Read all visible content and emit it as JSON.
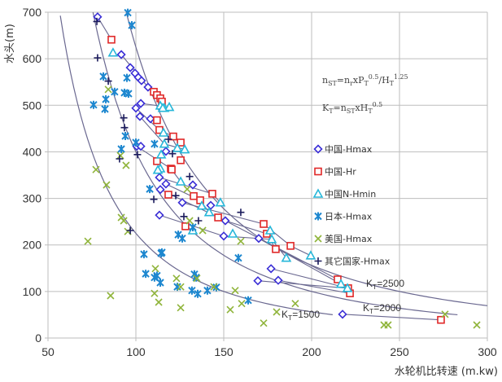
{
  "chart_data": {
    "type": "scatter",
    "title": "",
    "xlabel": "水轮机比转速 (m.kw)",
    "ylabel": "水头(m)",
    "xlim": [
      50,
      300
    ],
    "ylim": [
      0,
      700
    ],
    "x_ticks": [
      "50",
      "100",
      "150",
      "200",
      "250",
      "300"
    ],
    "y_ticks": [
      "0",
      "100",
      "200",
      "300",
      "400",
      "500",
      "600",
      "700"
    ],
    "grid": true,
    "legend_position": "right",
    "formulas": [
      "n_{ST}=n_{r}xP_{T}^{0.5}/H_{T}^{1.25}",
      "K_{T}=n_{ST}xH_{T}^{0.5}"
    ],
    "colors": {
      "cn_hmax": "#3b2fd6",
      "cn_hr": "#e02828",
      "cn_hmin": "#27b7d9",
      "jp": "#1d87cf",
      "us": "#8fb43a",
      "other": "#1b1b5c",
      "curve": "#6a6890"
    },
    "series": [
      {
        "name": "中国-Hmax",
        "marker": "diamond",
        "points": [
          [
            78.2,
            690
          ],
          [
            91.7,
            609
          ],
          [
            96.8,
            581
          ],
          [
            99.5,
            569
          ],
          [
            101.4,
            560
          ],
          [
            103.2,
            553
          ],
          [
            106.9,
            539
          ],
          [
            102.8,
            504
          ],
          [
            100,
            494
          ],
          [
            102.3,
            476
          ],
          [
            108.3,
            471
          ],
          [
            100.5,
            412
          ],
          [
            102.8,
            412
          ],
          [
            117.1,
            401
          ],
          [
            113.4,
            345
          ],
          [
            117.1,
            331
          ],
          [
            132.4,
            329
          ],
          [
            113.9,
            319
          ],
          [
            126.4,
            291
          ],
          [
            142.6,
            285
          ],
          [
            113.4,
            264
          ],
          [
            150.9,
            252
          ],
          [
            150,
            219
          ],
          [
            169.9,
            214
          ],
          [
            176.9,
            149
          ],
          [
            169.4,
            123
          ],
          [
            181,
            124
          ],
          [
            217.6,
            51
          ]
        ]
      },
      {
        "name": "中国-Hr",
        "marker": "square",
        "points": [
          [
            86.1,
            641
          ],
          [
            110.2,
            529
          ],
          [
            112,
            522
          ],
          [
            113.9,
            515
          ],
          [
            114.8,
            508
          ],
          [
            112,
            468
          ],
          [
            113.4,
            447
          ],
          [
            121.3,
            433
          ],
          [
            125.5,
            420
          ],
          [
            112,
            380
          ],
          [
            119.9,
            364
          ],
          [
            125.5,
            382
          ],
          [
            120.4,
            362
          ],
          [
            118.5,
            308
          ],
          [
            132.9,
            305
          ],
          [
            136.6,
            296
          ],
          [
            143.5,
            310
          ],
          [
            146.8,
            259
          ],
          [
            128.2,
            240
          ],
          [
            172.7,
            245
          ],
          [
            174.5,
            224
          ],
          [
            179.6,
            191
          ],
          [
            188,
            198
          ],
          [
            214.8,
            126
          ],
          [
            220.8,
            107
          ],
          [
            221.8,
            96
          ],
          [
            273.6,
            39
          ]
        ]
      },
      {
        "name": "中国N-Hmin",
        "marker": "triangle",
        "points": [
          [
            87,
            613
          ],
          [
            113.9,
            499
          ],
          [
            116.2,
            494
          ],
          [
            119,
            496
          ],
          [
            115.3,
            494
          ],
          [
            116.2,
            417
          ],
          [
            123.6,
            408
          ],
          [
            127.8,
            405
          ],
          [
            114.4,
            394
          ],
          [
            113.9,
            364
          ],
          [
            115.7,
            441
          ],
          [
            112.5,
            361
          ],
          [
            125.5,
            336
          ],
          [
            137.5,
            284
          ],
          [
            141.7,
            270
          ],
          [
            148.1,
            291
          ],
          [
            132.4,
            231
          ],
          [
            155.1,
            224
          ],
          [
            176.4,
            231
          ],
          [
            177.3,
            212
          ],
          [
            185.6,
            172
          ],
          [
            199.5,
            177
          ],
          [
            216.7,
            116
          ],
          [
            220.4,
            107
          ]
        ]
      },
      {
        "name": "日本-Hmax",
        "marker": "star",
        "points": [
          [
            95.4,
            699
          ],
          [
            97.7,
            672
          ],
          [
            81.5,
            562
          ],
          [
            94.9,
            559
          ],
          [
            87.9,
            529
          ],
          [
            93.5,
            527
          ],
          [
            95.8,
            525
          ],
          [
            82.9,
            513
          ],
          [
            75.9,
            501
          ],
          [
            82.4,
            492
          ],
          [
            94,
            434
          ],
          [
            100,
            420
          ],
          [
            91.7,
            406
          ],
          [
            110.6,
            417
          ],
          [
            107.9,
            320
          ],
          [
            124.1,
            222
          ],
          [
            126.4,
            214
          ],
          [
            104.6,
            180
          ],
          [
            114.4,
            182
          ],
          [
            105.6,
            138
          ],
          [
            110.6,
            130
          ],
          [
            112,
            134
          ],
          [
            113.9,
            119
          ],
          [
            123.6,
            110
          ],
          [
            131.9,
            102
          ],
          [
            132.4,
            238
          ],
          [
            114.8,
            184
          ],
          [
            158.3,
            172
          ],
          [
            133.3,
            137
          ],
          [
            134.3,
            130
          ],
          [
            135.2,
            95
          ],
          [
            140.7,
            102
          ],
          [
            145.8,
            109
          ],
          [
            163.9,
            81
          ]
        ]
      },
      {
        "name": "美国-Hmax",
        "marker": "x",
        "points": [
          [
            84.3,
            534
          ],
          [
            77.3,
            362
          ],
          [
            83.3,
            329
          ],
          [
            91.2,
            392
          ],
          [
            94.4,
            371
          ],
          [
            91.7,
            259
          ],
          [
            93.1,
            252
          ],
          [
            95.4,
            229
          ],
          [
            72.7,
            208
          ],
          [
            85.6,
            91
          ],
          [
            111.1,
            149
          ],
          [
            123.1,
            128
          ],
          [
            125.5,
            110
          ],
          [
            110.6,
            96
          ],
          [
            113,
            77
          ],
          [
            125.5,
            65
          ],
          [
            134.7,
            128
          ],
          [
            144.4,
            110
          ],
          [
            156.5,
            102
          ],
          [
            153.7,
            61
          ],
          [
            160.2,
            74
          ],
          [
            190.7,
            74
          ],
          [
            172.7,
            32
          ],
          [
            180.1,
            56
          ],
          [
            129.2,
            320
          ],
          [
            130.6,
            252
          ],
          [
            138,
            231
          ],
          [
            159.7,
            208
          ],
          [
            241.2,
            28
          ],
          [
            243.5,
            28
          ],
          [
            275.9,
            51
          ],
          [
            294,
            28
          ]
        ]
      },
      {
        "name": "其它国家-Hmax",
        "marker": "plus",
        "points": [
          [
            77.8,
            680
          ],
          [
            78.2,
            602
          ],
          [
            84.3,
            552
          ],
          [
            93.1,
            473
          ],
          [
            93.5,
            452
          ],
          [
            90.7,
            385
          ],
          [
            100.9,
            394
          ],
          [
            118.5,
            427
          ],
          [
            120.8,
            396
          ],
          [
            130.6,
            347
          ],
          [
            122.7,
            306
          ],
          [
            110.2,
            298
          ],
          [
            127.3,
            261
          ],
          [
            96.8,
            231
          ],
          [
            135.6,
            252
          ],
          [
            159.7,
            270
          ]
        ]
      }
    ],
    "curves": [
      {
        "label": "K_{T}=1500",
        "K": 1500,
        "x_range": [
          57,
          212
        ]
      },
      {
        "label": "K_{T}=2000",
        "K": 2000,
        "x_range": [
          75.6,
          283
        ]
      },
      {
        "label": "K_{T}=2500",
        "K": 2500,
        "x_range": [
          94.5,
          300
        ]
      }
    ],
    "links": [
      [
        [
          78.2,
          690
        ],
        [
          86.1,
          641
        ]
      ],
      [
        [
          91.7,
          609
        ],
        [
          106.9,
          539
        ],
        [
          114.4,
          508
        ]
      ],
      [
        [
          102.8,
          504
        ],
        [
          119,
          496
        ]
      ],
      [
        [
          100,
          494
        ],
        [
          113.4,
          447
        ],
        [
          121.3,
          433
        ],
        [
          125.5,
          420
        ]
      ],
      [
        [
          102.3,
          476
        ],
        [
          116.2,
          417
        ],
        [
          127.8,
          405
        ]
      ],
      [
        [
          100.5,
          412
        ],
        [
          119.9,
          364
        ],
        [
          125.5,
          336
        ]
      ],
      [
        [
          113.4,
          345
        ],
        [
          143.5,
          310
        ],
        [
          148.1,
          291
        ]
      ],
      [
        [
          117.1,
          331
        ],
        [
          136.6,
          296
        ],
        [
          141.7,
          270
        ]
      ],
      [
        [
          113.9,
          319
        ],
        [
          150.9,
          252
        ],
        [
          174.5,
          224
        ],
        [
          179.6,
          191
        ]
      ],
      [
        [
          126.4,
          291
        ],
        [
          172.7,
          245
        ],
        [
          188,
          198
        ],
        [
          199.5,
          177
        ]
      ],
      [
        [
          113.4,
          264
        ],
        [
          150,
          219
        ],
        [
          177.3,
          212
        ],
        [
          185.6,
          172
        ]
      ],
      [
        [
          150.9,
          252
        ],
        [
          214.8,
          126
        ]
      ],
      [
        [
          169.9,
          214
        ],
        [
          216.7,
          116
        ],
        [
          221.8,
          96
        ]
      ],
      [
        [
          176.9,
          149
        ],
        [
          220.8,
          107
        ]
      ],
      [
        [
          169.4,
          123
        ],
        [
          220.4,
          107
        ]
      ],
      [
        [
          181,
          124
        ],
        [
          221.8,
          96
        ]
      ],
      [
        [
          217.6,
          51
        ],
        [
          273.6,
          39
        ]
      ]
    ]
  }
}
